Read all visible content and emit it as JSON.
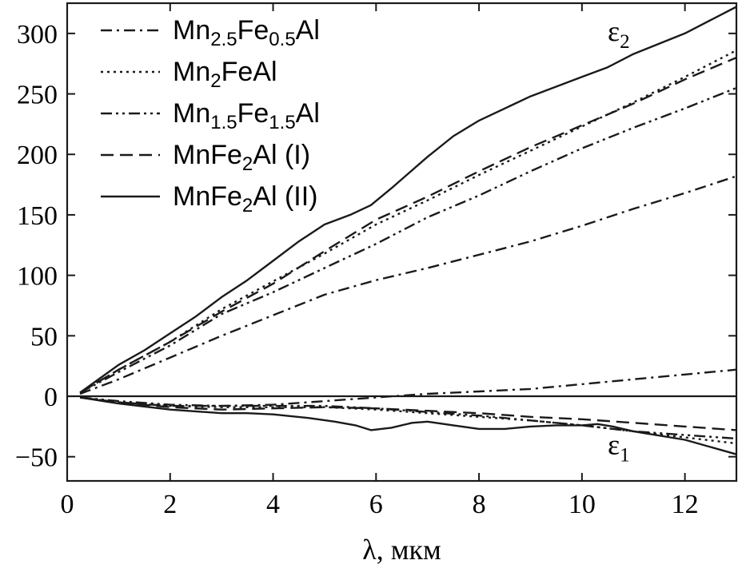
{
  "chart_data": {
    "type": "line",
    "xlabel": "λ, мкм",
    "ylabel": "",
    "xlim": [
      0,
      13
    ],
    "ylim": [
      -70,
      325
    ],
    "xticks": [
      0,
      2,
      4,
      6,
      8,
      10,
      12
    ],
    "yticks": [
      -50,
      0,
      50,
      100,
      150,
      200,
      250,
      300
    ],
    "xtick_labels": [
      "0",
      "2",
      "4",
      "6",
      "8",
      "10",
      "12"
    ],
    "ytick_labels": [
      "−50",
      "0",
      "50",
      "100",
      "150",
      "200",
      "250",
      "300"
    ],
    "legend_position": "top-left",
    "annotations": [
      {
        "text": "ε",
        "sub": "2",
        "x": 10.5,
        "y": 294
      },
      {
        "text": "ε",
        "sub": "1",
        "x": 10.5,
        "y": -48
      }
    ],
    "series": [
      {
        "name_main": "Mn",
        "name_sub1": "2.5",
        "name_mid": "Fe",
        "name_sub2": "0.5",
        "name_tail": "Al",
        "dash": "14 6 3 6",
        "eps2": [
          [
            0.25,
            2
          ],
          [
            1,
            14
          ],
          [
            2,
            32
          ],
          [
            3,
            50
          ],
          [
            4,
            67
          ],
          [
            5,
            84
          ],
          [
            6,
            96
          ],
          [
            7,
            106
          ],
          [
            8,
            117
          ],
          [
            9,
            128
          ],
          [
            10,
            141
          ],
          [
            11,
            155
          ],
          [
            12,
            168
          ],
          [
            13,
            182
          ]
        ],
        "eps1": [
          [
            0.25,
            -1
          ],
          [
            1,
            -5
          ],
          [
            2,
            -8
          ],
          [
            3,
            -8
          ],
          [
            4,
            -7
          ],
          [
            5,
            -4
          ],
          [
            6,
            -1
          ],
          [
            7,
            2
          ],
          [
            8,
            4
          ],
          [
            9,
            6
          ],
          [
            10,
            10
          ],
          [
            11,
            14
          ],
          [
            12,
            18
          ],
          [
            13,
            22
          ]
        ]
      },
      {
        "name_main": "Mn",
        "name_sub1": "2",
        "name_mid": "FeAl",
        "name_sub2": "",
        "name_tail": "",
        "dash": "3 5",
        "eps2": [
          [
            0.25,
            3
          ],
          [
            1,
            22
          ],
          [
            2,
            45
          ],
          [
            3,
            72
          ],
          [
            4,
            95
          ],
          [
            5,
            118
          ],
          [
            6,
            142
          ],
          [
            7,
            162
          ],
          [
            8,
            183
          ],
          [
            9,
            203
          ],
          [
            10,
            223
          ],
          [
            11,
            243
          ],
          [
            12,
            264
          ],
          [
            13,
            286
          ]
        ],
        "eps1": [
          [
            0.25,
            -1
          ],
          [
            1,
            -5
          ],
          [
            2,
            -8
          ],
          [
            3,
            -9
          ],
          [
            4,
            -9
          ],
          [
            5,
            -9
          ],
          [
            6,
            -11
          ],
          [
            7,
            -14
          ],
          [
            8,
            -17
          ],
          [
            9,
            -20
          ],
          [
            10,
            -24
          ],
          [
            11,
            -29
          ],
          [
            12,
            -34
          ],
          [
            13,
            -39
          ]
        ]
      },
      {
        "name_main": "Mn",
        "name_sub1": "1.5",
        "name_mid": "Fe",
        "name_sub2": "1.5",
        "name_tail": "Al",
        "dash": "14 5 3 5 3 5",
        "eps2": [
          [
            0.25,
            3
          ],
          [
            1,
            20
          ],
          [
            2,
            42
          ],
          [
            3,
            68
          ],
          [
            4,
            86
          ],
          [
            5,
            106
          ],
          [
            6,
            126
          ],
          [
            7,
            148
          ],
          [
            8,
            166
          ],
          [
            9,
            186
          ],
          [
            10,
            205
          ],
          [
            11,
            222
          ],
          [
            12,
            238
          ],
          [
            13,
            255
          ]
        ],
        "eps1": [
          [
            0.25,
            -1
          ],
          [
            1,
            -4
          ],
          [
            2,
            -7
          ],
          [
            3,
            -8
          ],
          [
            4,
            -8
          ],
          [
            5,
            -8
          ],
          [
            6,
            -10
          ],
          [
            7,
            -13
          ],
          [
            8,
            -16
          ],
          [
            9,
            -20
          ],
          [
            10,
            -24
          ],
          [
            11,
            -29
          ],
          [
            12,
            -32
          ],
          [
            13,
            -35
          ]
        ]
      },
      {
        "name_main": "MnFe",
        "name_sub1": "2",
        "name_mid": "Al (I)",
        "name_sub2": "",
        "name_tail": "",
        "dash": "16 8",
        "eps2": [
          [
            0.25,
            3
          ],
          [
            1,
            22
          ],
          [
            2,
            45
          ],
          [
            3,
            70
          ],
          [
            4,
            93
          ],
          [
            5,
            120
          ],
          [
            6,
            146
          ],
          [
            7,
            165
          ],
          [
            8,
            186
          ],
          [
            9,
            206
          ],
          [
            10,
            224
          ],
          [
            11,
            242
          ],
          [
            12,
            262
          ],
          [
            13,
            280
          ]
        ],
        "eps1": [
          [
            0.25,
            -1
          ],
          [
            1,
            -5
          ],
          [
            2,
            -9
          ],
          [
            3,
            -11
          ],
          [
            4,
            -10
          ],
          [
            5,
            -9
          ],
          [
            6,
            -10
          ],
          [
            7,
            -12
          ],
          [
            8,
            -14
          ],
          [
            9,
            -17
          ],
          [
            10,
            -19
          ],
          [
            11,
            -22
          ],
          [
            12,
            -25
          ],
          [
            13,
            -28
          ]
        ]
      },
      {
        "name_main": "MnFe",
        "name_sub1": "2",
        "name_mid": "Al (II)",
        "name_sub2": "",
        "name_tail": "",
        "dash": "",
        "eps2": [
          [
            0.25,
            3
          ],
          [
            1,
            26
          ],
          [
            1.5,
            38
          ],
          [
            2,
            52
          ],
          [
            2.5,
            66
          ],
          [
            3,
            82
          ],
          [
            3.5,
            96
          ],
          [
            4,
            112
          ],
          [
            4.5,
            128
          ],
          [
            5,
            142
          ],
          [
            5.5,
            150
          ],
          [
            5.9,
            158
          ],
          [
            6.3,
            172
          ],
          [
            7,
            198
          ],
          [
            7.5,
            215
          ],
          [
            8,
            228
          ],
          [
            9,
            248
          ],
          [
            10,
            264
          ],
          [
            10.5,
            272
          ],
          [
            11,
            283
          ],
          [
            12,
            300
          ],
          [
            13,
            322
          ]
        ],
        "eps1": [
          [
            0.25,
            -1
          ],
          [
            1,
            -6
          ],
          [
            2,
            -11
          ],
          [
            3,
            -14
          ],
          [
            3.5,
            -14
          ],
          [
            4,
            -15
          ],
          [
            4.7,
            -18
          ],
          [
            5.2,
            -21
          ],
          [
            5.6,
            -24
          ],
          [
            5.9,
            -28
          ],
          [
            6.3,
            -26
          ],
          [
            6.7,
            -22
          ],
          [
            7,
            -21
          ],
          [
            7.5,
            -24
          ],
          [
            8,
            -27
          ],
          [
            8.5,
            -27
          ],
          [
            9,
            -25
          ],
          [
            9.5,
            -24
          ],
          [
            10,
            -24
          ],
          [
            10.3,
            -23
          ],
          [
            10.6,
            -25
          ],
          [
            11,
            -29
          ],
          [
            12,
            -36
          ],
          [
            13,
            -48
          ]
        ]
      }
    ]
  }
}
